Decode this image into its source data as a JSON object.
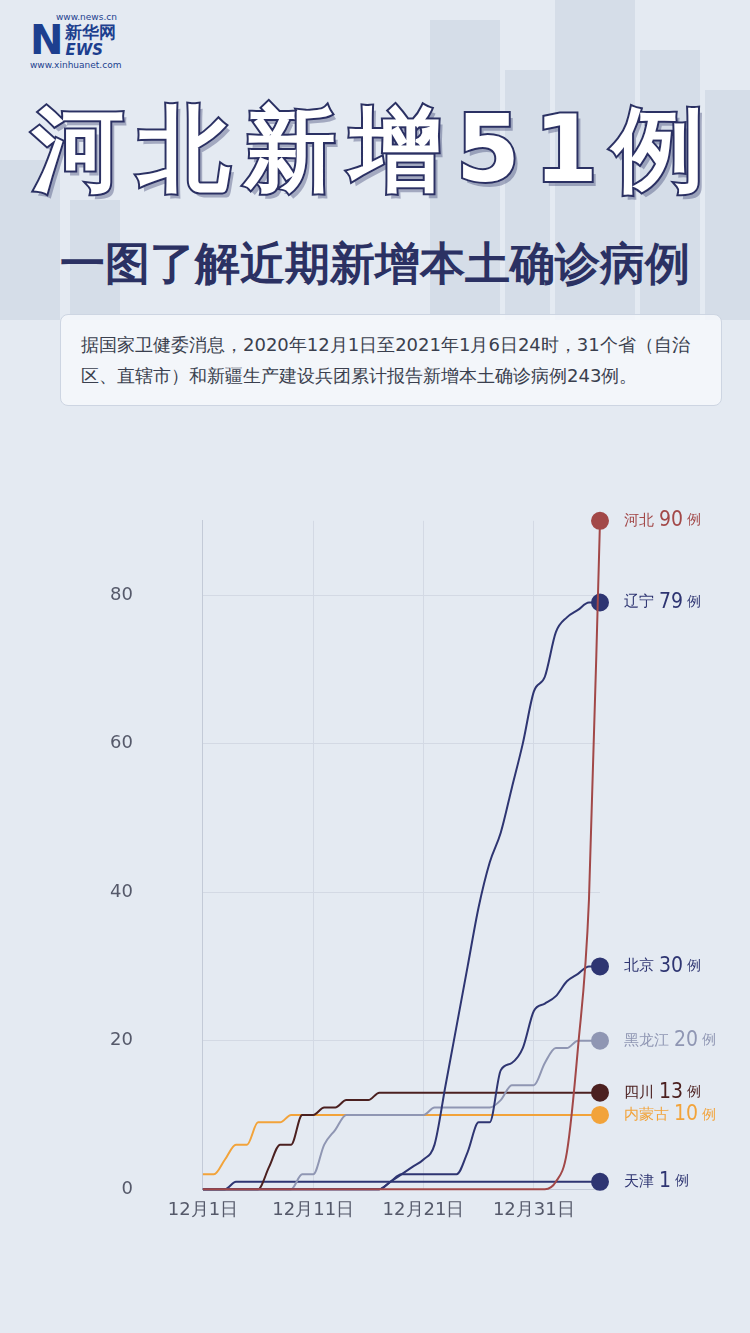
{
  "header": {
    "logo": {
      "site": "www.news.cn",
      "name": "新华网",
      "brand": "NEWS",
      "url": "www.xinhuanet.com"
    },
    "title": "河北新增51例",
    "subtitle": "一图了解近期新增本土确诊病例",
    "note": "据国家卫健委消息，2020年12月1日至2021年1月6日24时，31个省（自治区、直辖市）和新疆生产建设兵团累计报告新增本土确诊病例243例。"
  },
  "chart_data": {
    "type": "line",
    "categories": [
      "12月1日",
      null,
      null,
      null,
      null,
      null,
      null,
      null,
      null,
      null,
      "12月11日",
      null,
      null,
      null,
      null,
      null,
      null,
      null,
      null,
      null,
      "12月21日",
      null,
      null,
      null,
      null,
      null,
      null,
      null,
      null,
      null,
      "12月31日",
      null,
      null,
      null,
      null,
      null,
      null
    ],
    "series": [
      {
        "name": "河北",
        "color": "#a24848",
        "values": [
          0,
          0,
          0,
          0,
          0,
          0,
          0,
          0,
          0,
          0,
          0,
          0,
          0,
          0,
          0,
          0,
          0,
          0,
          0,
          0,
          0,
          0,
          0,
          0,
          0,
          0,
          0,
          0,
          0,
          0,
          0,
          0,
          1,
          5,
          19,
          39,
          90
        ]
      },
      {
        "name": "辽宁",
        "color": "#2e3572",
        "values": [
          0,
          0,
          0,
          0,
          0,
          0,
          0,
          0,
          0,
          0,
          0,
          0,
          0,
          0,
          0,
          0,
          0,
          1,
          2,
          3,
          4,
          6,
          14,
          22,
          30,
          38,
          44,
          48,
          54,
          60,
          67,
          69,
          75,
          77,
          78,
          79,
          79
        ]
      },
      {
        "name": "北京",
        "color": "#2e3572",
        "values": [
          0,
          0,
          0,
          0,
          0,
          0,
          0,
          0,
          0,
          0,
          0,
          0,
          0,
          0,
          0,
          0,
          0,
          1,
          2,
          2,
          2,
          2,
          2,
          2,
          5,
          9,
          9,
          16,
          17,
          19,
          24,
          25,
          26,
          28,
          29,
          30,
          30
        ]
      },
      {
        "name": "黑龙江",
        "color": "#8f96b3",
        "values": [
          0,
          0,
          0,
          0,
          0,
          0,
          0,
          0,
          0,
          2,
          2,
          6,
          8,
          10,
          10,
          10,
          10,
          10,
          10,
          10,
          10,
          11,
          11,
          11,
          11,
          11,
          11,
          12,
          14,
          14,
          14,
          17,
          19,
          19,
          20,
          20,
          20
        ]
      },
      {
        "name": "四川",
        "color": "#4b2020",
        "values": [
          0,
          0,
          0,
          0,
          0,
          0,
          3,
          6,
          6,
          10,
          10,
          11,
          11,
          12,
          12,
          12,
          13,
          13,
          13,
          13,
          13,
          13,
          13,
          13,
          13,
          13,
          13,
          13,
          13,
          13,
          13,
          13,
          13,
          13,
          13,
          13,
          13
        ]
      },
      {
        "name": "内蒙古",
        "color": "#f2a33a",
        "values": [
          2,
          2,
          4,
          6,
          6,
          9,
          9,
          9,
          10,
          10,
          10,
          10,
          10,
          10,
          10,
          10,
          10,
          10,
          10,
          10,
          10,
          10,
          10,
          10,
          10,
          10,
          10,
          10,
          10,
          10,
          10,
          10,
          10,
          10,
          10,
          10,
          10
        ]
      },
      {
        "name": "天津",
        "color": "#2e3572",
        "values": [
          0,
          0,
          0,
          1,
          1,
          1,
          1,
          1,
          1,
          1,
          1,
          1,
          1,
          1,
          1,
          1,
          1,
          1,
          1,
          1,
          1,
          1,
          1,
          1,
          1,
          1,
          1,
          1,
          1,
          1,
          1,
          1,
          1,
          1,
          1,
          1,
          1
        ]
      }
    ],
    "end_label_unit": "例",
    "ylim": [
      0,
      90
    ],
    "yticks": [
      0,
      20,
      40,
      60,
      80
    ],
    "grid": true
  }
}
